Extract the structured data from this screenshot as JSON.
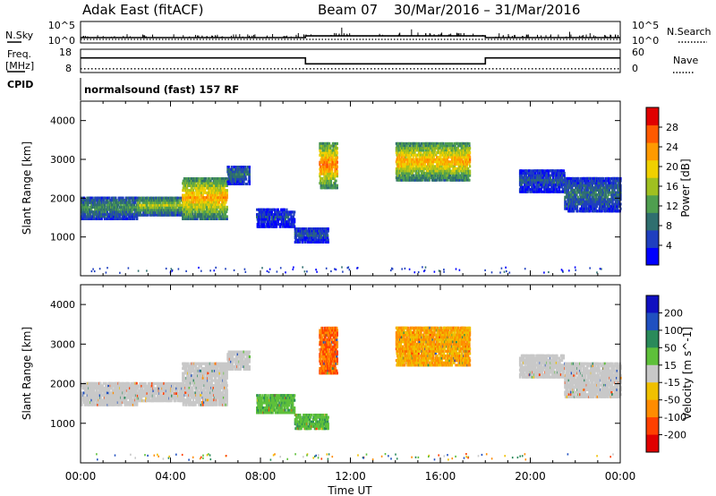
{
  "header": {
    "station": "Adak East (fitACF)",
    "beam": "Beam 07",
    "dates": "30/Mar/2016 – 31/Mar/2016"
  },
  "side_labels": {
    "nsky": "N.Sky",
    "freq_line1": "Freq.",
    "freq_line2": "[MHz]",
    "cpid": "CPID",
    "nsearch": "N.Search",
    "nave": "Nave"
  },
  "control_program": "normalsound (fast) 157 RF",
  "colors": {
    "power_scale": [
      "#0000ff",
      "#1f3fbf",
      "#2f6f6f",
      "#4f9f4f",
      "#a0c020",
      "#f0d000",
      "#ff9a00",
      "#ff5a00",
      "#e00000"
    ],
    "velocity_scale": [
      "#1010c0",
      "#2050c0",
      "#2a8a5a",
      "#5ec03a",
      "#c8c8c8",
      "#f0c000",
      "#ff8c00",
      "#ff4000",
      "#e00000"
    ]
  },
  "chart_data": [
    {
      "type": "line",
      "title": "",
      "series": [
        {
          "name": "N.Sky",
          "x": [
            0,
            10,
            10,
            18,
            18,
            24
          ],
          "values": [
            10,
            10,
            30,
            30,
            10,
            10
          ]
        },
        {
          "name": "N.Search",
          "x": [
            0,
            24
          ],
          "values": [
            1,
            1
          ]
        }
      ],
      "left_ticks": [
        "10^5",
        "10^0"
      ],
      "right_ticks": [
        "10^5",
        "10^0"
      ]
    },
    {
      "type": "line",
      "series": [
        {
          "name": "Freq.",
          "x": [
            0,
            10,
            10,
            18,
            18,
            24
          ],
          "values": [
            14.5,
            14.5,
            11.5,
            11.5,
            14.5,
            14.5
          ]
        },
        {
          "name": "Nave",
          "x": [
            0,
            24
          ],
          "values": [
            6,
            6
          ]
        }
      ],
      "left_ticks": [
        "18",
        "8"
      ],
      "right_ticks": [
        "60",
        "0"
      ],
      "ylim_left": [
        8,
        18
      ],
      "ylim_right": [
        0,
        60
      ]
    },
    {
      "type": "heatmap",
      "variable": "Power",
      "colorbar_label": "Power [dB]",
      "colorbar_ticks": [
        "28",
        "24",
        "20",
        "16",
        "12",
        "8",
        "4"
      ],
      "colorbar_range": [
        0,
        32
      ],
      "xlabel": "",
      "ylabel": "Slant Range [km]",
      "y_ticks": [
        "4000",
        "3000",
        "2000",
        "1000"
      ],
      "ylim": [
        0,
        4500
      ],
      "xlim": [
        0,
        24
      ],
      "regions": [
        {
          "t0": 0.0,
          "t1": 2.5,
          "r_lo": 1500,
          "r_hi": 2100,
          "v": 10
        },
        {
          "t0": 2.5,
          "t1": 4.5,
          "r_lo": 1600,
          "r_hi": 2100,
          "v": 14
        },
        {
          "t0": 4.5,
          "t1": 6.5,
          "r_lo": 1500,
          "r_hi": 2600,
          "v": 20
        },
        {
          "t0": 6.5,
          "t1": 7.5,
          "r_lo": 2400,
          "r_hi": 2900,
          "v": 8
        },
        {
          "t0": 7.8,
          "t1": 9.5,
          "r_lo": 1300,
          "r_hi": 1800,
          "v": 5
        },
        {
          "t0": 9.5,
          "t1": 11.0,
          "r_lo": 900,
          "r_hi": 1300,
          "v": 6
        },
        {
          "t0": 10.6,
          "t1": 11.4,
          "r_lo": 2300,
          "r_hi": 3500,
          "v": 22
        },
        {
          "t0": 14.0,
          "t1": 17.3,
          "r_lo": 2500,
          "r_hi": 3500,
          "v": 20
        },
        {
          "t0": 19.5,
          "t1": 21.5,
          "r_lo": 2200,
          "r_hi": 2800,
          "v": 6
        },
        {
          "t0": 21.5,
          "t1": 24.0,
          "r_lo": 1700,
          "r_hi": 2600,
          "v": 8
        }
      ]
    },
    {
      "type": "heatmap",
      "variable": "Velocity",
      "colorbar_label": "Velocity [m s^-1]",
      "colorbar_ticks": [
        "200",
        "100",
        "50",
        "15",
        "-15",
        "-50",
        "-100",
        "-200"
      ],
      "xlabel": "Time UT",
      "ylabel": "Slant Range [km]",
      "x_ticks": [
        "00:00",
        "04:00",
        "08:00",
        "12:00",
        "16:00",
        "20:00",
        "00:00"
      ],
      "y_ticks": [
        "4000",
        "3000",
        "2000",
        "1000"
      ],
      "ylim": [
        0,
        4500
      ],
      "xlim": [
        0,
        24
      ],
      "regions": [
        {
          "t0": 0.0,
          "t1": 2.5,
          "r_lo": 1500,
          "r_hi": 2100,
          "v": 0
        },
        {
          "t0": 2.5,
          "t1": 4.5,
          "r_lo": 1600,
          "r_hi": 2100,
          "v": 0
        },
        {
          "t0": 4.5,
          "t1": 6.5,
          "r_lo": 1500,
          "r_hi": 2600,
          "v": 0
        },
        {
          "t0": 6.5,
          "t1": 7.5,
          "r_lo": 2400,
          "r_hi": 2900,
          "v": 0
        },
        {
          "t0": 7.8,
          "t1": 9.5,
          "r_lo": 1300,
          "r_hi": 1800,
          "v": 40
        },
        {
          "t0": 9.5,
          "t1": 11.0,
          "r_lo": 900,
          "r_hi": 1300,
          "v": 40
        },
        {
          "t0": 10.6,
          "t1": 11.4,
          "r_lo": 2300,
          "r_hi": 3500,
          "v": -100
        },
        {
          "t0": 14.0,
          "t1": 17.3,
          "r_lo": 2500,
          "r_hi": 3500,
          "v": -50
        },
        {
          "t0": 19.5,
          "t1": 21.5,
          "r_lo": 2200,
          "r_hi": 2800,
          "v": 0
        },
        {
          "t0": 21.5,
          "t1": 24.0,
          "r_lo": 1700,
          "r_hi": 2600,
          "v": 0
        }
      ]
    }
  ]
}
